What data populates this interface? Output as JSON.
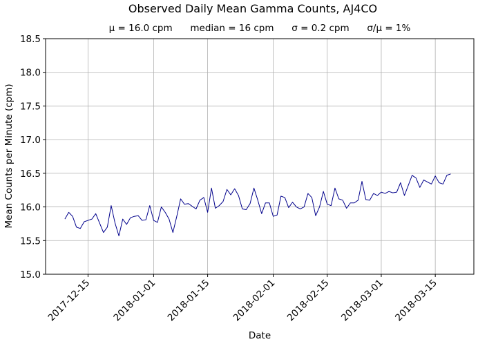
{
  "chart_data": {
    "type": "line",
    "title": "Observed Daily Mean Gamma Counts, AJ4CO",
    "subtitle": "μ = 16.0 cpm      median = 16 cpm      σ = 0.2 cpm      σ/μ = 1%",
    "xlabel": "Date",
    "ylabel": "Mean Counts per Minute (cpm)",
    "xlim": [
      "2017-12-04",
      "2018-03-25"
    ],
    "ylim": [
      15.0,
      18.5
    ],
    "x_ticks": [
      "2017-12-15",
      "2018-01-01",
      "2018-01-15",
      "2018-02-01",
      "2018-02-15",
      "2018-03-01",
      "2018-03-15"
    ],
    "y_ticks": [
      "15.0",
      "15.5",
      "16.0",
      "16.5",
      "17.0",
      "17.5",
      "18.0",
      "18.5"
    ],
    "grid": true,
    "line_color": "#00008b",
    "series": [
      {
        "x_start": "2017-12-09",
        "x_step_days": 1,
        "values": [
          15.82,
          15.92,
          15.86,
          15.7,
          15.68,
          15.78,
          15.8,
          15.82,
          15.9,
          15.76,
          15.62,
          15.7,
          16.02,
          15.76,
          15.57,
          15.82,
          15.74,
          15.84,
          15.86,
          15.87,
          15.8,
          15.81,
          16.02,
          15.8,
          15.77,
          16.0,
          15.92,
          15.82,
          15.62,
          15.86,
          16.12,
          16.04,
          16.05,
          16.01,
          15.97,
          16.1,
          16.14,
          15.92,
          16.28,
          15.98,
          16.02,
          16.08,
          16.26,
          16.18,
          16.27,
          16.17,
          15.97,
          15.96,
          16.05,
          16.28,
          16.1,
          15.9,
          16.06,
          16.06,
          15.86,
          15.88,
          16.16,
          16.14,
          15.99,
          16.07,
          16.0,
          15.97,
          16.0,
          16.2,
          16.14,
          15.87,
          16.0,
          16.23,
          16.04,
          16.02,
          16.28,
          16.12,
          16.1,
          15.98,
          16.06,
          16.06,
          16.1,
          16.38,
          16.11,
          16.1,
          16.2,
          16.17,
          16.22,
          16.2,
          16.23,
          16.21,
          16.22,
          16.36,
          16.17,
          16.32,
          16.47,
          16.43,
          16.29,
          16.4,
          16.37,
          16.34,
          16.46,
          16.36,
          16.34,
          16.47,
          16.49
        ]
      }
    ]
  }
}
